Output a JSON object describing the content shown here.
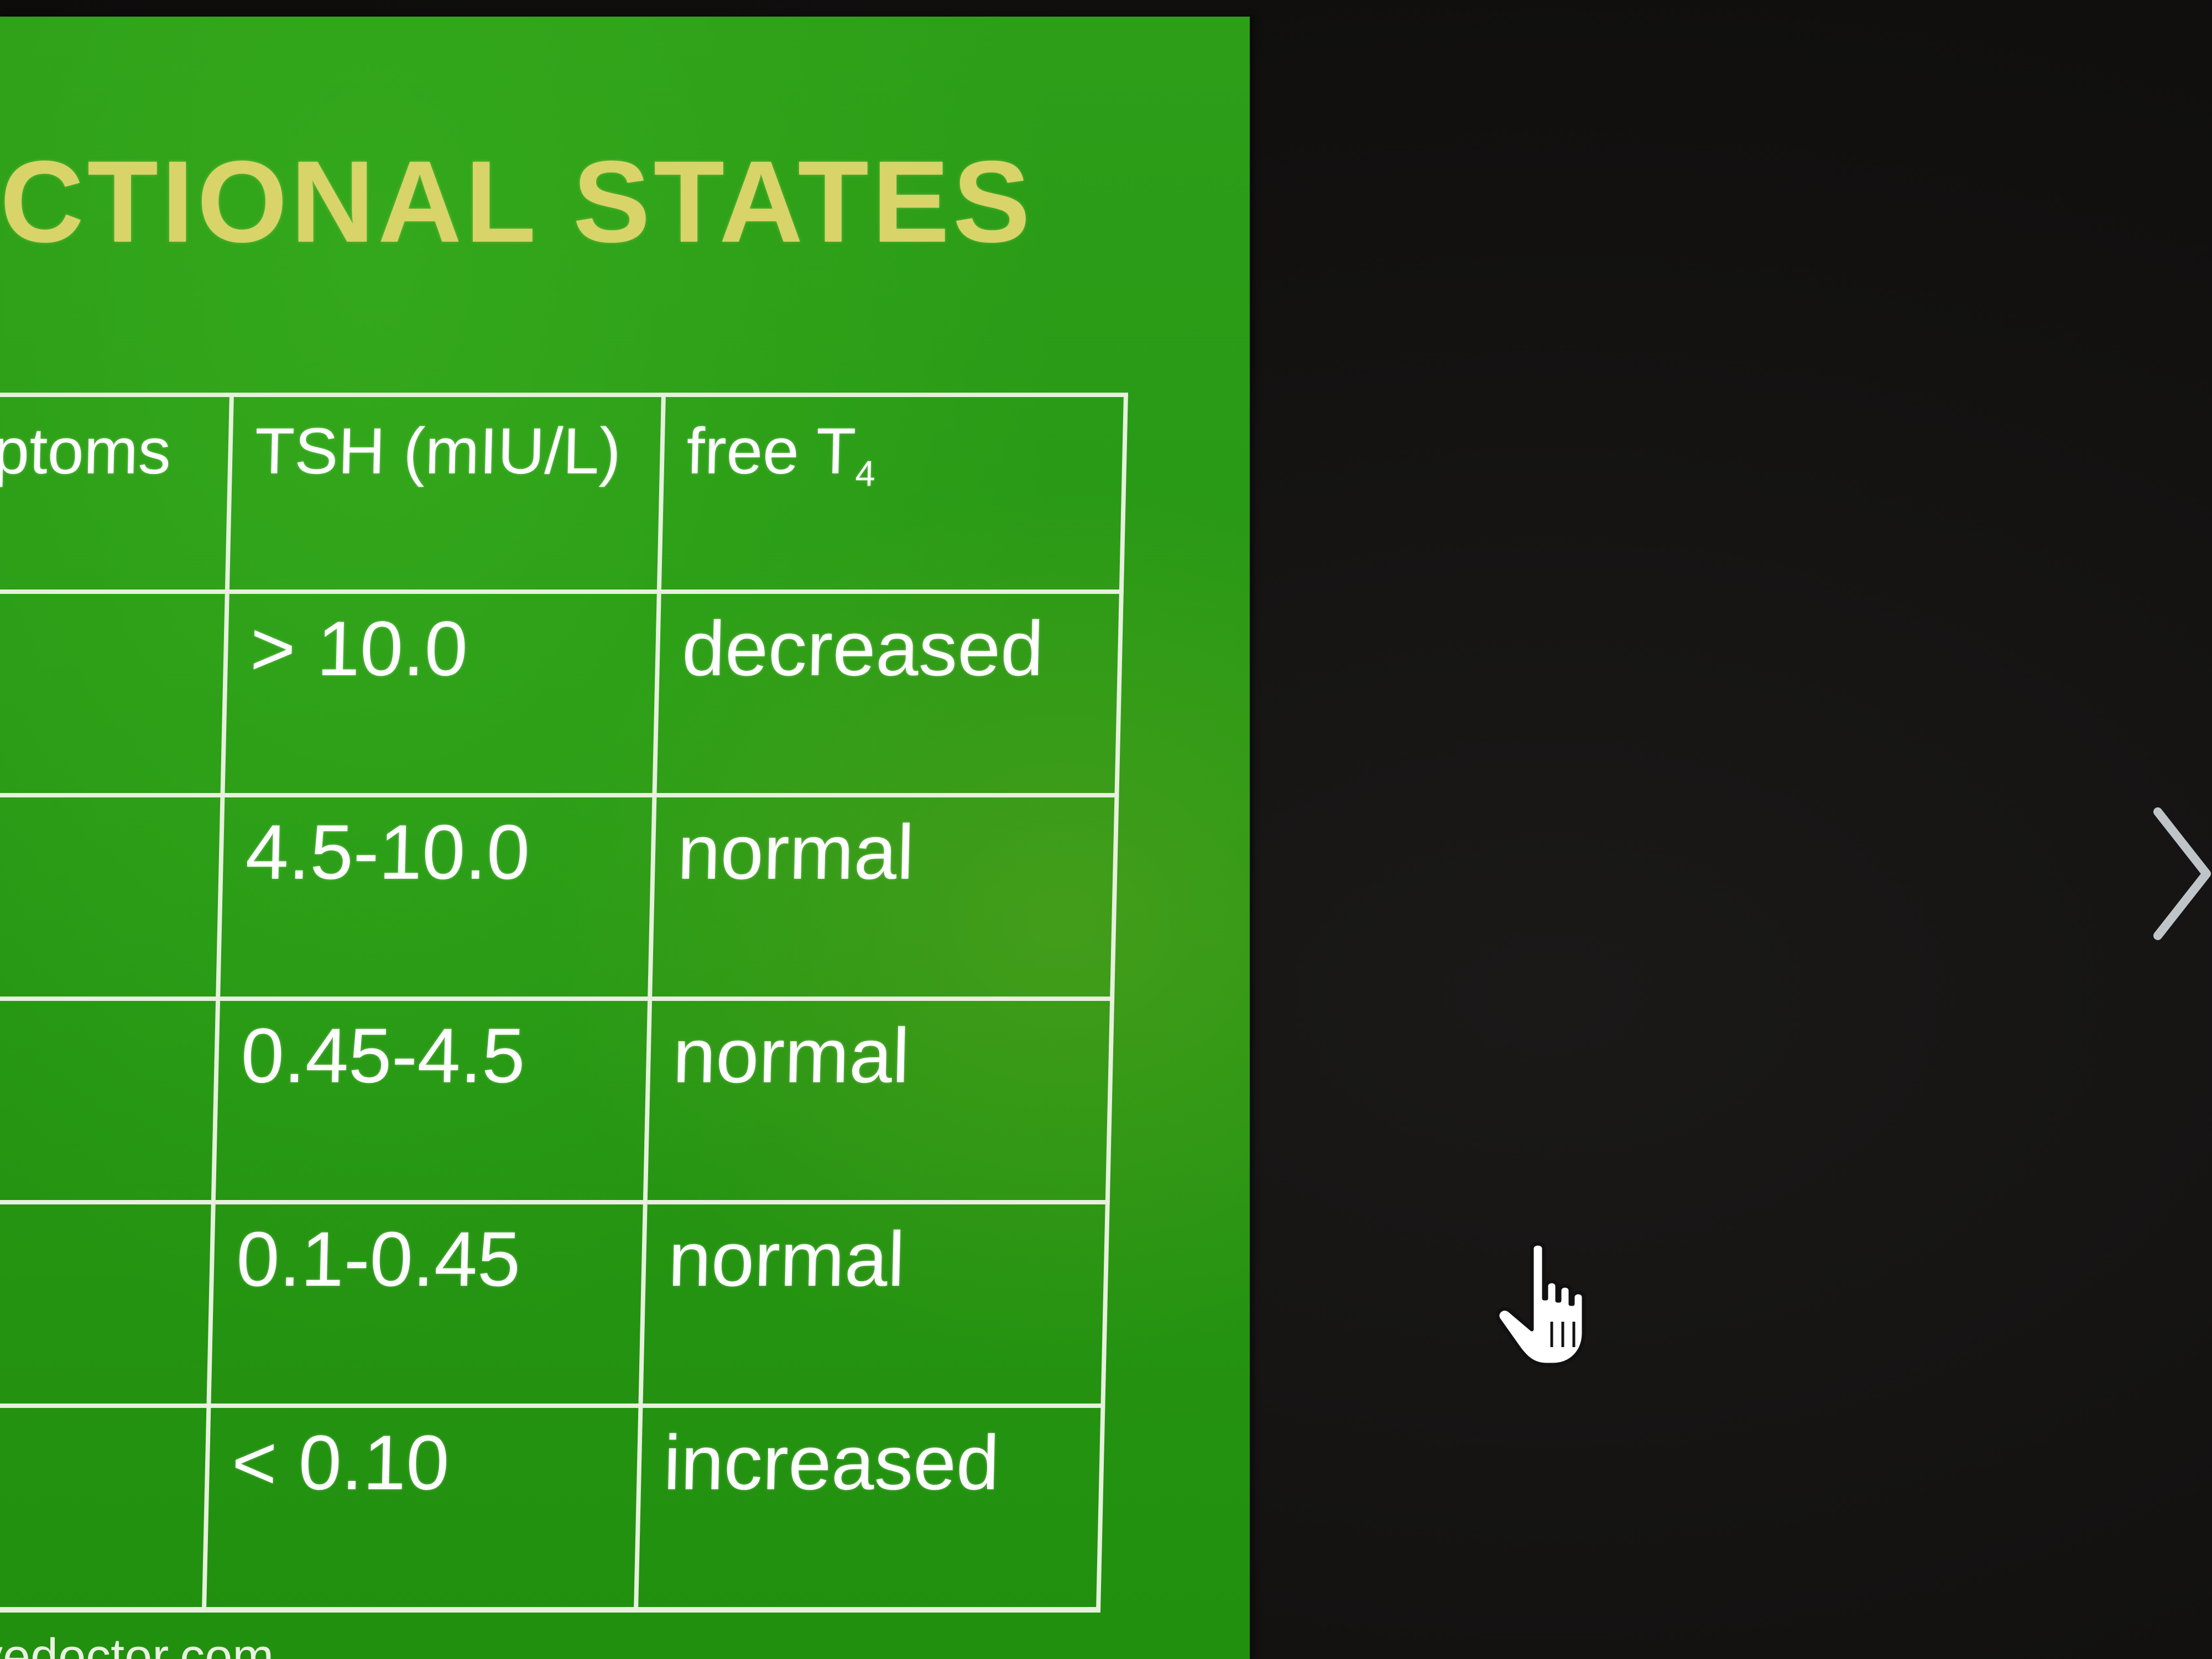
{
  "slide": {
    "title": "CTIONAL STATES",
    "footer_url": "vedoctor.com"
  },
  "table": {
    "headers": {
      "symptoms": "ptoms",
      "tsh": "TSH (mIU/L)",
      "free_t4": "free T",
      "free_t4_subscript": "4"
    },
    "rows": [
      {
        "symptoms": "",
        "tsh": "> 10.0",
        "free_t4": "decreased"
      },
      {
        "symptoms": "",
        "tsh": "4.5-10.0",
        "free_t4": "normal"
      },
      {
        "symptoms": "",
        "tsh": "0.45-4.5",
        "free_t4": "normal"
      },
      {
        "symptoms": "",
        "tsh": "0.1-0.45",
        "free_t4": "normal"
      },
      {
        "symptoms": "",
        "tsh": "< 0.10",
        "free_t4": "increased"
      }
    ]
  },
  "viewer": {
    "next_icon": "chevron-right-icon",
    "cursor_icon": "hand-pointer-icon"
  },
  "colors": {
    "slide_background": "#2a9c16",
    "title_text": "#d8d46a",
    "table_border": "#e7f1dd",
    "table_text": "#ffffff",
    "screen_background": "#121110"
  }
}
